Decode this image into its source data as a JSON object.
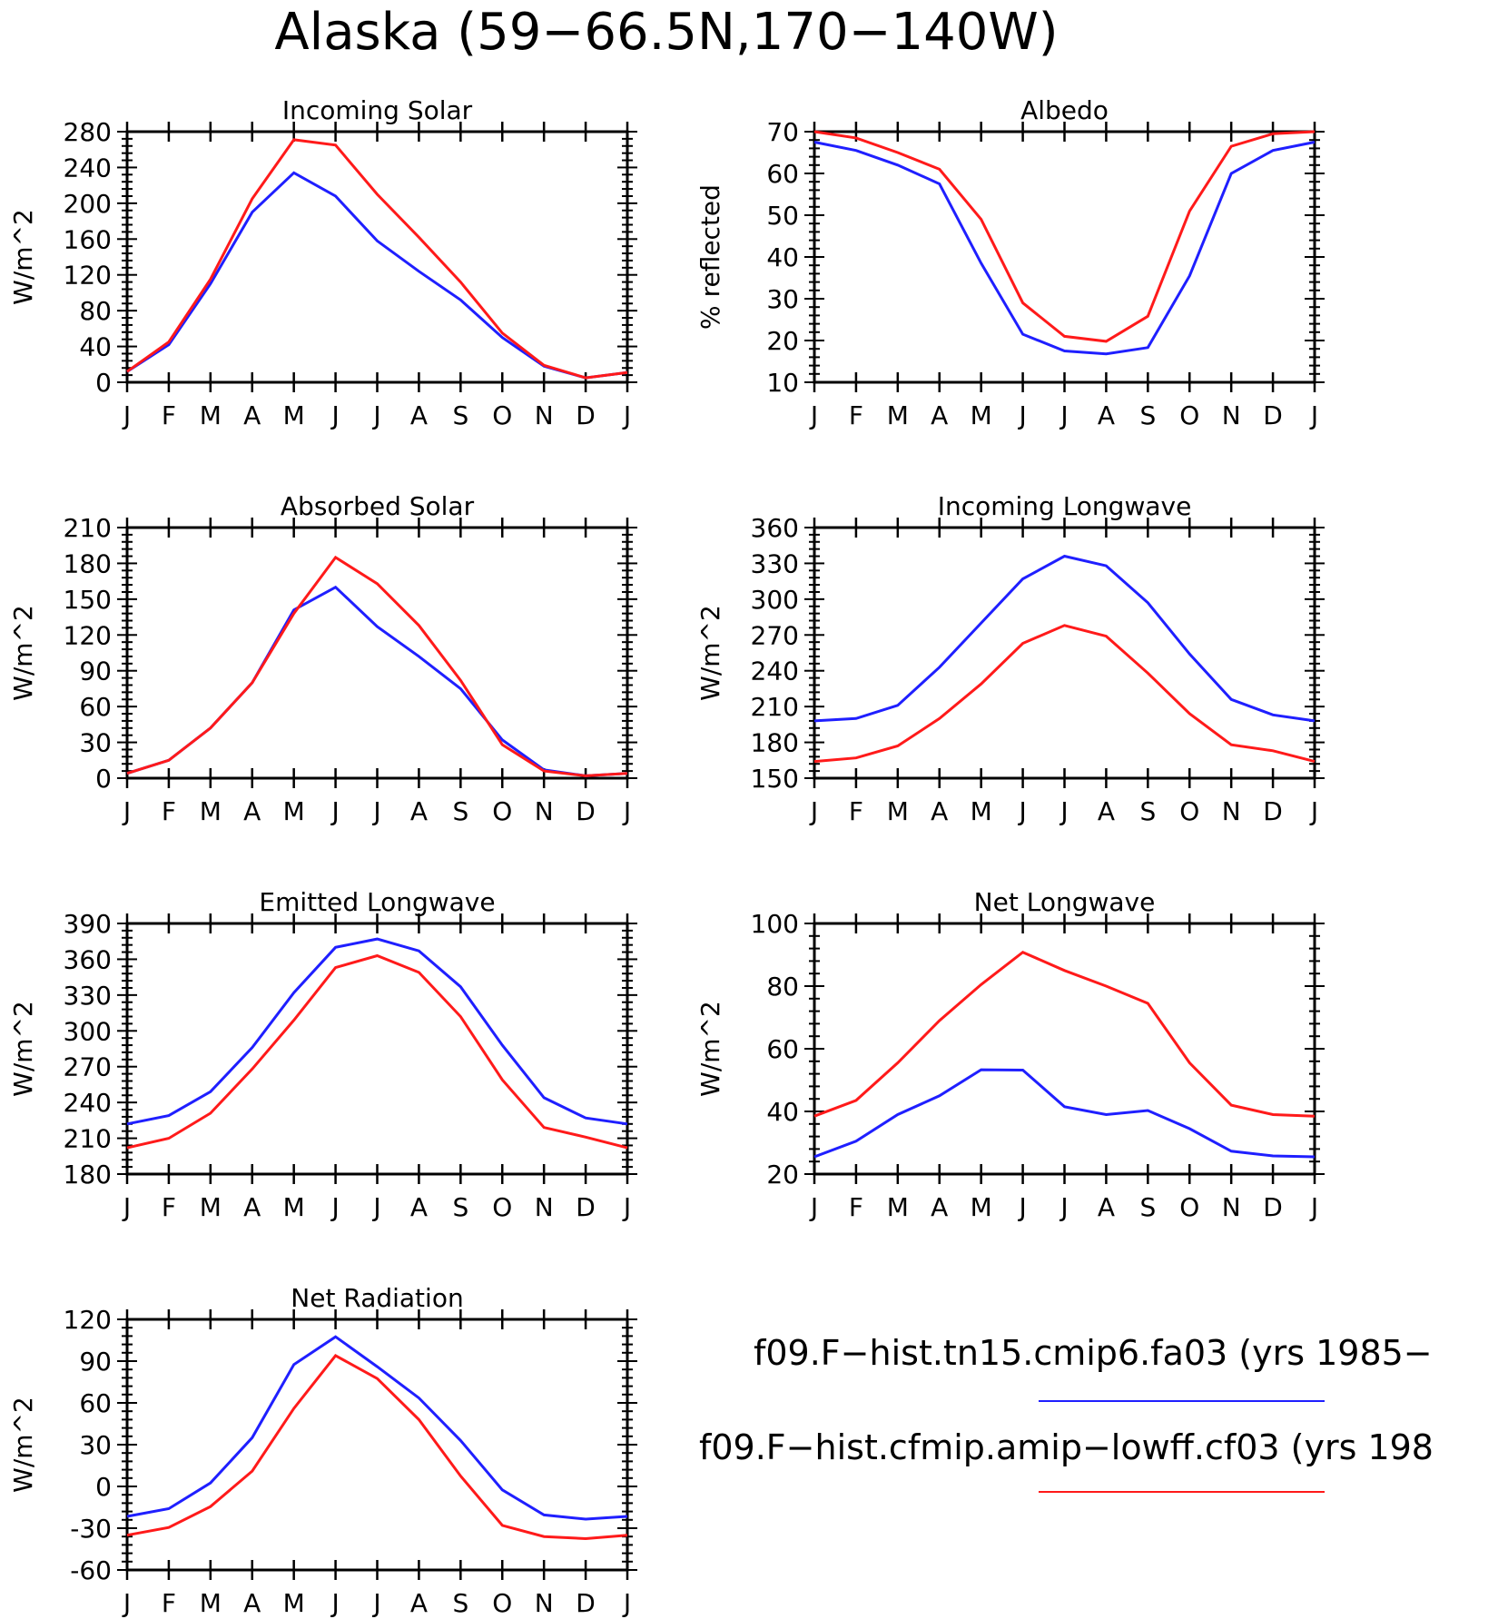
{
  "title": "Alaska (59−66.5N,170−140W)",
  "colors": {
    "case1": "#1f1fff",
    "case2": "#ff1a1a",
    "axis": "#000000"
  },
  "legend": [
    {
      "label": "f09.F−hist.tn15.cmip6.fa03 (yrs 1985−",
      "color": "#1f1fff"
    },
    {
      "label": "f09.F−hist.cfmip.amip−lowff.cf03 (yrs 198",
      "color": "#ff1a1a"
    }
  ],
  "chart_data": [
    {
      "type": "line",
      "title": "Incoming Solar",
      "ylabel": "W/m^2",
      "x": [
        "J",
        "F",
        "M",
        "A",
        "M",
        "J",
        "J",
        "A",
        "S",
        "O",
        "N",
        "D",
        "J"
      ],
      "ylim": [
        0,
        280
      ],
      "yticks": [
        0,
        40,
        80,
        120,
        160,
        200,
        240,
        280
      ],
      "series": [
        {
          "color": "#1f1fff",
          "values": [
            12,
            42,
            110,
            190,
            234,
            208,
            158,
            124,
            92,
            50,
            18,
            5,
            11
          ]
        },
        {
          "color": "#ff1a1a",
          "values": [
            12,
            45,
            115,
            205,
            271,
            265,
            210,
            162,
            112,
            55,
            19,
            5,
            11
          ]
        }
      ]
    },
    {
      "type": "line",
      "title": "Albedo",
      "ylabel": "% reflected",
      "x": [
        "J",
        "F",
        "M",
        "A",
        "M",
        "J",
        "J",
        "A",
        "S",
        "O",
        "N",
        "D",
        "J"
      ],
      "ylim": [
        10,
        70
      ],
      "yticks": [
        10,
        20,
        30,
        40,
        50,
        60,
        70
      ],
      "series": [
        {
          "color": "#1f1fff",
          "values": [
            67.5,
            65.5,
            62,
            57.5,
            38.5,
            21.5,
            17.5,
            16.8,
            18.3,
            35.5,
            60,
            65.5,
            67.5
          ]
        },
        {
          "color": "#ff1a1a",
          "values": [
            70,
            68.5,
            65,
            61,
            49,
            29,
            21,
            19.8,
            25.8,
            51,
            66.5,
            69.5,
            70
          ]
        }
      ]
    },
    {
      "type": "line",
      "title": "Absorbed Solar",
      "ylabel": "W/m^2",
      "x": [
        "J",
        "F",
        "M",
        "A",
        "M",
        "J",
        "J",
        "A",
        "S",
        "O",
        "N",
        "D",
        "J"
      ],
      "ylim": [
        0,
        210
      ],
      "yticks": [
        0,
        30,
        60,
        90,
        120,
        150,
        180,
        210
      ],
      "series": [
        {
          "color": "#1f1fff",
          "values": [
            4,
            15,
            42,
            80,
            141,
            160,
            127,
            102,
            75,
            32,
            7,
            2,
            4
          ]
        },
        {
          "color": "#ff1a1a",
          "values": [
            4,
            15,
            42,
            80,
            138,
            185,
            163,
            128,
            82,
            28,
            6,
            2,
            4
          ]
        }
      ]
    },
    {
      "type": "line",
      "title": "Incoming Longwave",
      "ylabel": "W/m^2",
      "x": [
        "J",
        "F",
        "M",
        "A",
        "M",
        "J",
        "J",
        "A",
        "S",
        "O",
        "N",
        "D",
        "J"
      ],
      "ylim": [
        150,
        360
      ],
      "yticks": [
        150,
        180,
        210,
        240,
        270,
        300,
        330,
        360
      ],
      "series": [
        {
          "color": "#1f1fff",
          "values": [
            198,
            200,
            211,
            243,
            280,
            317,
            336,
            328,
            297,
            254,
            216,
            203,
            198
          ]
        },
        {
          "color": "#ff1a1a",
          "values": [
            164,
            167,
            177,
            200,
            229,
            263,
            278,
            269,
            238,
            204,
            178,
            173,
            164
          ]
        }
      ]
    },
    {
      "type": "line",
      "title": "Emitted Longwave",
      "ylabel": "W/m^2",
      "x": [
        "J",
        "F",
        "M",
        "A",
        "M",
        "J",
        "J",
        "A",
        "S",
        "O",
        "N",
        "D",
        "J"
      ],
      "ylim": [
        180,
        390
      ],
      "yticks": [
        180,
        210,
        240,
        270,
        300,
        330,
        360,
        390
      ],
      "series": [
        {
          "color": "#1f1fff",
          "values": [
            222,
            229,
            249,
            286,
            332,
            370,
            377,
            367,
            337,
            288,
            244,
            227,
            222
          ]
        },
        {
          "color": "#ff1a1a",
          "values": [
            202,
            210,
            231,
            268,
            309,
            353,
            363,
            349,
            312,
            259,
            219,
            211,
            202
          ]
        }
      ]
    },
    {
      "type": "line",
      "title": "Net Longwave",
      "ylabel": "W/m^2",
      "x": [
        "J",
        "F",
        "M",
        "A",
        "M",
        "J",
        "J",
        "A",
        "S",
        "O",
        "N",
        "D",
        "J"
      ],
      "ylim": [
        20,
        100
      ],
      "yticks": [
        20,
        40,
        60,
        80,
        100
      ],
      "series": [
        {
          "color": "#1f1fff",
          "values": [
            25.5,
            30.5,
            39,
            45,
            53.3,
            53.2,
            41.5,
            39,
            40.3,
            34.5,
            27.3,
            25.8,
            25.5
          ]
        },
        {
          "color": "#ff1a1a",
          "values": [
            38.5,
            43.5,
            55.5,
            69,
            80.5,
            90.8,
            85,
            80,
            74.5,
            55.5,
            42,
            39,
            38.5
          ]
        }
      ]
    },
    {
      "type": "line",
      "title": "Net Radiation",
      "ylabel": "W/m^2",
      "x": [
        "J",
        "F",
        "M",
        "A",
        "M",
        "J",
        "J",
        "A",
        "S",
        "O",
        "N",
        "D",
        "J"
      ],
      "ylim": [
        -60,
        120
      ],
      "yticks": [
        -60,
        -30,
        0,
        30,
        60,
        90,
        120
      ],
      "series": [
        {
          "color": "#1f1fff",
          "values": [
            -21.5,
            -16,
            2.5,
            35,
            87.5,
            107.5,
            86,
            63.5,
            33,
            -2.5,
            -20.5,
            -23.5,
            -21.5
          ]
        },
        {
          "color": "#ff1a1a",
          "values": [
            -35,
            -29.5,
            -14.5,
            11,
            56,
            94,
            77.5,
            48,
            7.5,
            -28,
            -36,
            -37.5,
            -35
          ]
        }
      ]
    }
  ]
}
